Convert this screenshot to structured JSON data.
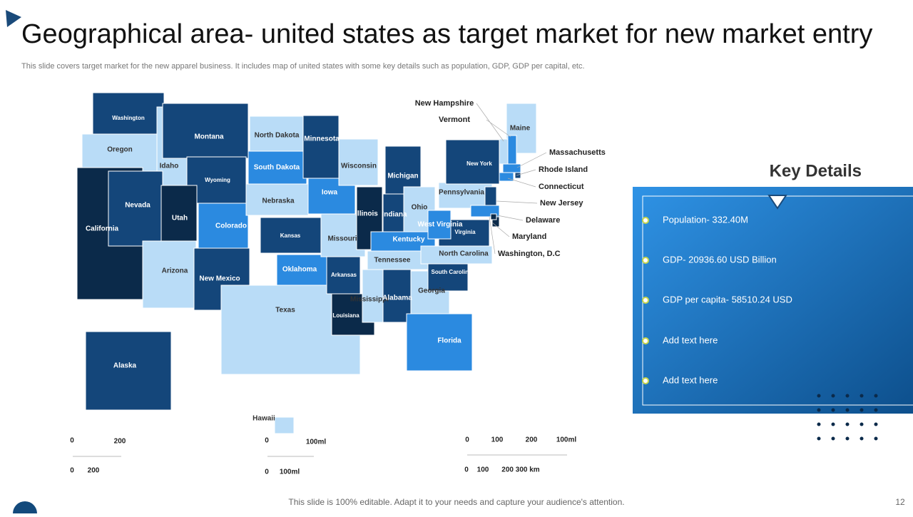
{
  "header": {
    "title": "Geographical area- united states as target market for new market entry",
    "subtitle": "This slide covers target market for the new apparel business. It includes map of united states with some key details such as population, GDP, GDP per capital, etc."
  },
  "map": {
    "states": [
      "Washington",
      "Oregon",
      "California",
      "Idaho",
      "Nevada",
      "Montana",
      "Wyoming",
      "Utah",
      "Arizona",
      "Colorado",
      "New Mexico",
      "North Dakota",
      "South Dakota",
      "Nebraska",
      "Kansas",
      "Oklahoma",
      "Texas",
      "Minnesota",
      "Iowa",
      "Missouri",
      "Arkansas",
      "Louisiana",
      "Wisconsin",
      "Illinois",
      "Michigan",
      "Indiana",
      "Ohio",
      "Kentucky",
      "Tennessee",
      "Mississippi",
      "Alabama",
      "Georgia",
      "Florida",
      "South Carolina",
      "North Carolina",
      "Virginia",
      "West Virginia",
      "Pennsylvania",
      "New York",
      "Maine",
      "Alaska",
      "Hawaii"
    ],
    "callouts": [
      "New Hampshire",
      "Vermont",
      "Massachusetts",
      "Rhode Island",
      "Connecticut",
      "New Jersey",
      "Delaware",
      "Maryland",
      "Washington, D.C"
    ],
    "scales": [
      [
        "0",
        "200",
        "0",
        "200"
      ],
      [
        "0",
        "100ml",
        "0",
        "100ml"
      ],
      [
        "0",
        "100",
        "200",
        "100ml",
        "0",
        "100",
        "200 300 km"
      ]
    ]
  },
  "key_details": {
    "title": "Key Details",
    "items": [
      "Population- 332.40M",
      "GDP- 20936.60 USD Billion",
      "GDP per capita- 58510.24 USD",
      "Add text here",
      "Add text here"
    ]
  },
  "footer": {
    "note": "This slide is 100% editable. Adapt it to your needs and capture your audience's attention.",
    "page": "12"
  }
}
